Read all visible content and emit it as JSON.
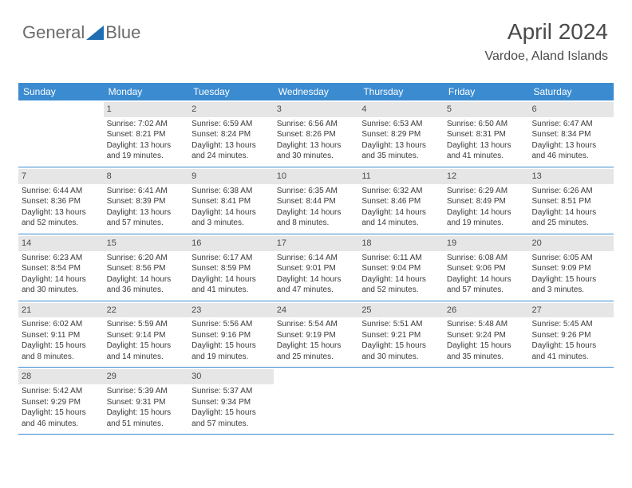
{
  "logo": {
    "text1": "General",
    "text2": "Blue"
  },
  "header": {
    "month_year": "April 2024",
    "location": "Vardoe, Aland Islands"
  },
  "colors": {
    "header_bg": "#3b8bd0",
    "header_text": "#ffffff",
    "daynum_bg": "#e6e6e6",
    "text": "#3a3a3a",
    "logo_triangle": "#1f6db3"
  },
  "day_labels": [
    "Sunday",
    "Monday",
    "Tuesday",
    "Wednesday",
    "Thursday",
    "Friday",
    "Saturday"
  ],
  "weeks": [
    [
      null,
      {
        "n": "1",
        "sr": "Sunrise: 7:02 AM",
        "ss": "Sunset: 8:21 PM",
        "d1": "Daylight: 13 hours",
        "d2": "and 19 minutes."
      },
      {
        "n": "2",
        "sr": "Sunrise: 6:59 AM",
        "ss": "Sunset: 8:24 PM",
        "d1": "Daylight: 13 hours",
        "d2": "and 24 minutes."
      },
      {
        "n": "3",
        "sr": "Sunrise: 6:56 AM",
        "ss": "Sunset: 8:26 PM",
        "d1": "Daylight: 13 hours",
        "d2": "and 30 minutes."
      },
      {
        "n": "4",
        "sr": "Sunrise: 6:53 AM",
        "ss": "Sunset: 8:29 PM",
        "d1": "Daylight: 13 hours",
        "d2": "and 35 minutes."
      },
      {
        "n": "5",
        "sr": "Sunrise: 6:50 AM",
        "ss": "Sunset: 8:31 PM",
        "d1": "Daylight: 13 hours",
        "d2": "and 41 minutes."
      },
      {
        "n": "6",
        "sr": "Sunrise: 6:47 AM",
        "ss": "Sunset: 8:34 PM",
        "d1": "Daylight: 13 hours",
        "d2": "and 46 minutes."
      }
    ],
    [
      {
        "n": "7",
        "sr": "Sunrise: 6:44 AM",
        "ss": "Sunset: 8:36 PM",
        "d1": "Daylight: 13 hours",
        "d2": "and 52 minutes."
      },
      {
        "n": "8",
        "sr": "Sunrise: 6:41 AM",
        "ss": "Sunset: 8:39 PM",
        "d1": "Daylight: 13 hours",
        "d2": "and 57 minutes."
      },
      {
        "n": "9",
        "sr": "Sunrise: 6:38 AM",
        "ss": "Sunset: 8:41 PM",
        "d1": "Daylight: 14 hours",
        "d2": "and 3 minutes."
      },
      {
        "n": "10",
        "sr": "Sunrise: 6:35 AM",
        "ss": "Sunset: 8:44 PM",
        "d1": "Daylight: 14 hours",
        "d2": "and 8 minutes."
      },
      {
        "n": "11",
        "sr": "Sunrise: 6:32 AM",
        "ss": "Sunset: 8:46 PM",
        "d1": "Daylight: 14 hours",
        "d2": "and 14 minutes."
      },
      {
        "n": "12",
        "sr": "Sunrise: 6:29 AM",
        "ss": "Sunset: 8:49 PM",
        "d1": "Daylight: 14 hours",
        "d2": "and 19 minutes."
      },
      {
        "n": "13",
        "sr": "Sunrise: 6:26 AM",
        "ss": "Sunset: 8:51 PM",
        "d1": "Daylight: 14 hours",
        "d2": "and 25 minutes."
      }
    ],
    [
      {
        "n": "14",
        "sr": "Sunrise: 6:23 AM",
        "ss": "Sunset: 8:54 PM",
        "d1": "Daylight: 14 hours",
        "d2": "and 30 minutes."
      },
      {
        "n": "15",
        "sr": "Sunrise: 6:20 AM",
        "ss": "Sunset: 8:56 PM",
        "d1": "Daylight: 14 hours",
        "d2": "and 36 minutes."
      },
      {
        "n": "16",
        "sr": "Sunrise: 6:17 AM",
        "ss": "Sunset: 8:59 PM",
        "d1": "Daylight: 14 hours",
        "d2": "and 41 minutes."
      },
      {
        "n": "17",
        "sr": "Sunrise: 6:14 AM",
        "ss": "Sunset: 9:01 PM",
        "d1": "Daylight: 14 hours",
        "d2": "and 47 minutes."
      },
      {
        "n": "18",
        "sr": "Sunrise: 6:11 AM",
        "ss": "Sunset: 9:04 PM",
        "d1": "Daylight: 14 hours",
        "d2": "and 52 minutes."
      },
      {
        "n": "19",
        "sr": "Sunrise: 6:08 AM",
        "ss": "Sunset: 9:06 PM",
        "d1": "Daylight: 14 hours",
        "d2": "and 57 minutes."
      },
      {
        "n": "20",
        "sr": "Sunrise: 6:05 AM",
        "ss": "Sunset: 9:09 PM",
        "d1": "Daylight: 15 hours",
        "d2": "and 3 minutes."
      }
    ],
    [
      {
        "n": "21",
        "sr": "Sunrise: 6:02 AM",
        "ss": "Sunset: 9:11 PM",
        "d1": "Daylight: 15 hours",
        "d2": "and 8 minutes."
      },
      {
        "n": "22",
        "sr": "Sunrise: 5:59 AM",
        "ss": "Sunset: 9:14 PM",
        "d1": "Daylight: 15 hours",
        "d2": "and 14 minutes."
      },
      {
        "n": "23",
        "sr": "Sunrise: 5:56 AM",
        "ss": "Sunset: 9:16 PM",
        "d1": "Daylight: 15 hours",
        "d2": "and 19 minutes."
      },
      {
        "n": "24",
        "sr": "Sunrise: 5:54 AM",
        "ss": "Sunset: 9:19 PM",
        "d1": "Daylight: 15 hours",
        "d2": "and 25 minutes."
      },
      {
        "n": "25",
        "sr": "Sunrise: 5:51 AM",
        "ss": "Sunset: 9:21 PM",
        "d1": "Daylight: 15 hours",
        "d2": "and 30 minutes."
      },
      {
        "n": "26",
        "sr": "Sunrise: 5:48 AM",
        "ss": "Sunset: 9:24 PM",
        "d1": "Daylight: 15 hours",
        "d2": "and 35 minutes."
      },
      {
        "n": "27",
        "sr": "Sunrise: 5:45 AM",
        "ss": "Sunset: 9:26 PM",
        "d1": "Daylight: 15 hours",
        "d2": "and 41 minutes."
      }
    ],
    [
      {
        "n": "28",
        "sr": "Sunrise: 5:42 AM",
        "ss": "Sunset: 9:29 PM",
        "d1": "Daylight: 15 hours",
        "d2": "and 46 minutes."
      },
      {
        "n": "29",
        "sr": "Sunrise: 5:39 AM",
        "ss": "Sunset: 9:31 PM",
        "d1": "Daylight: 15 hours",
        "d2": "and 51 minutes."
      },
      {
        "n": "30",
        "sr": "Sunrise: 5:37 AM",
        "ss": "Sunset: 9:34 PM",
        "d1": "Daylight: 15 hours",
        "d2": "and 57 minutes."
      },
      null,
      null,
      null,
      null
    ]
  ]
}
